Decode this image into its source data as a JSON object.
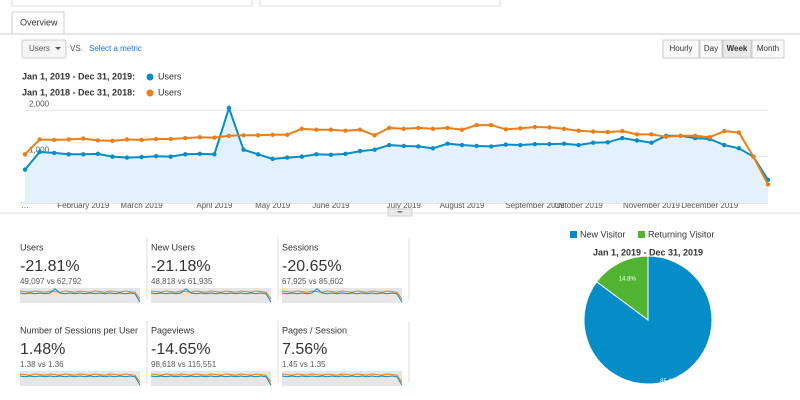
{
  "tab": "Overview",
  "controls": {
    "metric": "Users",
    "vs": "VS.",
    "select_metric": "Select a metric",
    "granularity": [
      "Hourly",
      "Day",
      "Week",
      "Month"
    ],
    "active": "Week"
  },
  "legend": [
    {
      "range": "Jan 1, 2019 - Dec 31, 2019:",
      "metric": "Users",
      "color": "#058dc7"
    },
    {
      "range": "Jan 1, 2018 - Dec 31, 2018:",
      "metric": "Users",
      "color": "#ed7e17"
    }
  ],
  "main_chart": {
    "type": "line",
    "categories": [
      "…",
      null,
      null,
      null,
      "February 2019",
      null,
      null,
      null,
      "March 2019",
      null,
      null,
      null,
      null,
      "April 2019",
      null,
      null,
      null,
      "May 2019",
      null,
      null,
      null,
      "June 2019",
      null,
      null,
      null,
      null,
      "July 2019",
      null,
      null,
      null,
      "August 2019",
      null,
      null,
      null,
      null,
      "September 2019",
      null,
      null,
      "October 2019",
      null,
      null,
      null,
      null,
      "November 2019",
      null,
      null,
      null,
      "December 2019",
      null,
      null,
      null,
      null
    ],
    "series": [
      {
        "color": "#058dc7",
        "area": true,
        "values": [
          720,
          1100,
          1080,
          1050,
          1050,
          1060,
          1000,
          980,
          990,
          1010,
          1000,
          1050,
          1060,
          1050,
          2050,
          1150,
          1050,
          950,
          980,
          1000,
          1050,
          1040,
          1060,
          1120,
          1150,
          1250,
          1230,
          1220,
          1180,
          1280,
          1250,
          1230,
          1220,
          1260,
          1250,
          1270,
          1270,
          1280,
          1250,
          1300,
          1310,
          1400,
          1350,
          1300,
          1450,
          1450,
          1400,
          1380,
          1250,
          1180,
          1000,
          500
        ]
      },
      {
        "color": "#ed7e17",
        "area": false,
        "values": [
          1050,
          1370,
          1360,
          1370,
          1390,
          1350,
          1340,
          1370,
          1360,
          1380,
          1380,
          1400,
          1420,
          1410,
          1450,
          1460,
          1460,
          1470,
          1470,
          1600,
          1580,
          1580,
          1560,
          1580,
          1460,
          1620,
          1600,
          1620,
          1600,
          1620,
          1580,
          1680,
          1680,
          1590,
          1610,
          1640,
          1630,
          1600,
          1560,
          1540,
          1530,
          1550,
          1480,
          1480,
          1430,
          1450,
          1450,
          1420,
          1550,
          1520,
          1000,
          400
        ]
      }
    ],
    "ylim": [
      0,
      2200
    ],
    "yticks": [
      {
        "value": 1000,
        "label": "1,000"
      },
      {
        "value": 2000,
        "label": "2,000"
      }
    ],
    "grid": true
  },
  "scorecards": [
    {
      "name": "Users",
      "change": "-21.81%",
      "compare": "49,097 vs 62,792",
      "color": "#db4437"
    },
    {
      "name": "New Users",
      "change": "-21.18%",
      "compare": "48,818 vs 61,935",
      "color": "#db4437"
    },
    {
      "name": "Sessions",
      "change": "-20.65%",
      "compare": "67,925 vs 85,602",
      "color": "#db4437"
    },
    {
      "name": "Number of Sessions per User",
      "change": "1.48%",
      "compare": "1.38 vs 1.36",
      "color": "#0f9d58"
    },
    {
      "name": "Pageviews",
      "change": "-14.65%",
      "compare": "98,618 vs 115,551",
      "color": "#db4437"
    },
    {
      "name": "Pages / Session",
      "change": "7.56%",
      "compare": "1.45 vs 1.35",
      "color": "#0f9d58"
    }
  ],
  "pie_chart": {
    "type": "pie",
    "title": "Jan 1, 2019 - Dec 31, 2019",
    "categories": [
      "New Visitor",
      "Returning Visitor"
    ],
    "values": [
      85.2,
      14.8
    ],
    "value_labels": [
      "85.2%",
      "14.8%"
    ],
    "colors": [
      "#058dc7",
      "#50b432"
    ]
  }
}
